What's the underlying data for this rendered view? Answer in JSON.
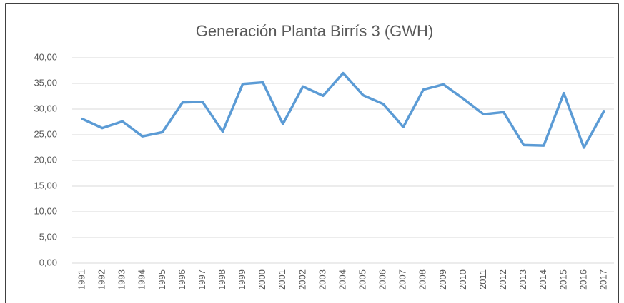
{
  "chart_data": {
    "type": "line",
    "title": "Generación Planta Birrís 3 (GWH)",
    "categories": [
      "1991",
      "1992",
      "1993",
      "1994",
      "1995",
      "1996",
      "1997",
      "1998",
      "1999",
      "2000",
      "2001",
      "2002",
      "2003",
      "2004",
      "2005",
      "2006",
      "2007",
      "2008",
      "2009",
      "2010",
      "2011",
      "2012",
      "2013",
      "2014",
      "2015",
      "2016",
      "2017"
    ],
    "values": [
      28.1,
      26.3,
      27.6,
      24.7,
      25.5,
      31.3,
      31.4,
      25.6,
      34.9,
      35.2,
      27.1,
      34.4,
      32.6,
      37.0,
      32.7,
      31.0,
      26.5,
      33.8,
      34.8,
      32.0,
      29.0,
      29.4,
      23.0,
      22.9,
      33.1,
      22.5,
      29.6
    ],
    "color": "#5b9bd5",
    "ylim": [
      0,
      40
    ],
    "yticks": [
      {
        "value": 0,
        "label": "0,00"
      },
      {
        "value": 5,
        "label": "5,00"
      },
      {
        "value": 10,
        "label": "10,00"
      },
      {
        "value": 15,
        "label": "15,00"
      },
      {
        "value": 20,
        "label": "20,00"
      },
      {
        "value": 25,
        "label": "25,00"
      },
      {
        "value": 30,
        "label": "30,00"
      },
      {
        "value": 35,
        "label": "35,00"
      },
      {
        "value": 40,
        "label": "40,00"
      }
    ],
    "grid": true
  }
}
